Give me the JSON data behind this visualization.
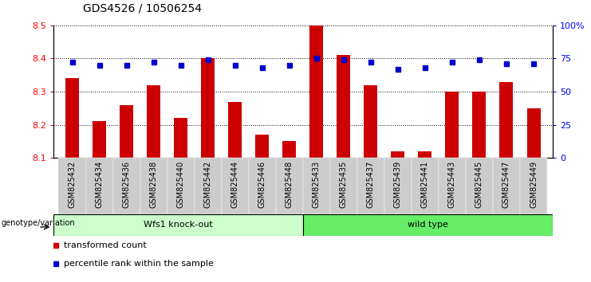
{
  "title": "GDS4526 / 10506254",
  "samples": [
    "GSM825432",
    "GSM825434",
    "GSM825436",
    "GSM825438",
    "GSM825440",
    "GSM825442",
    "GSM825444",
    "GSM825446",
    "GSM825448",
    "GSM825433",
    "GSM825435",
    "GSM825437",
    "GSM825439",
    "GSM825441",
    "GSM825443",
    "GSM825445",
    "GSM825447",
    "GSM825449"
  ],
  "transformed_counts": [
    8.34,
    8.21,
    8.26,
    8.32,
    8.22,
    8.4,
    8.27,
    8.17,
    8.15,
    8.5,
    8.41,
    8.32,
    8.12,
    8.12,
    8.3,
    8.3,
    8.33,
    8.25
  ],
  "percentile_ranks": [
    72,
    70,
    70,
    72,
    70,
    74,
    70,
    68,
    70,
    75,
    74,
    72,
    67,
    68,
    72,
    74,
    71,
    71
  ],
  "ylim_left": [
    8.1,
    8.5
  ],
  "ylim_right": [
    0,
    100
  ],
  "yticks_left": [
    8.1,
    8.2,
    8.3,
    8.4,
    8.5
  ],
  "yticks_right": [
    0,
    25,
    50,
    75,
    100
  ],
  "ytick_labels_right": [
    "0",
    "25",
    "50",
    "75",
    "100%"
  ],
  "group1_label": "Wfs1 knock-out",
  "group2_label": "wild type",
  "group1_count": 9,
  "group2_count": 9,
  "group1_color": "#ccffcc",
  "group2_color": "#66ee66",
  "bar_color": "#cc0000",
  "dot_color": "#0000cc",
  "tick_bg_color": "#cccccc",
  "legend_label1": "transformed count",
  "legend_label2": "percentile rank within the sample",
  "genotype_label": "genotype/variation",
  "title_fontsize": 10,
  "axis_fontsize": 8,
  "tick_fontsize": 7
}
